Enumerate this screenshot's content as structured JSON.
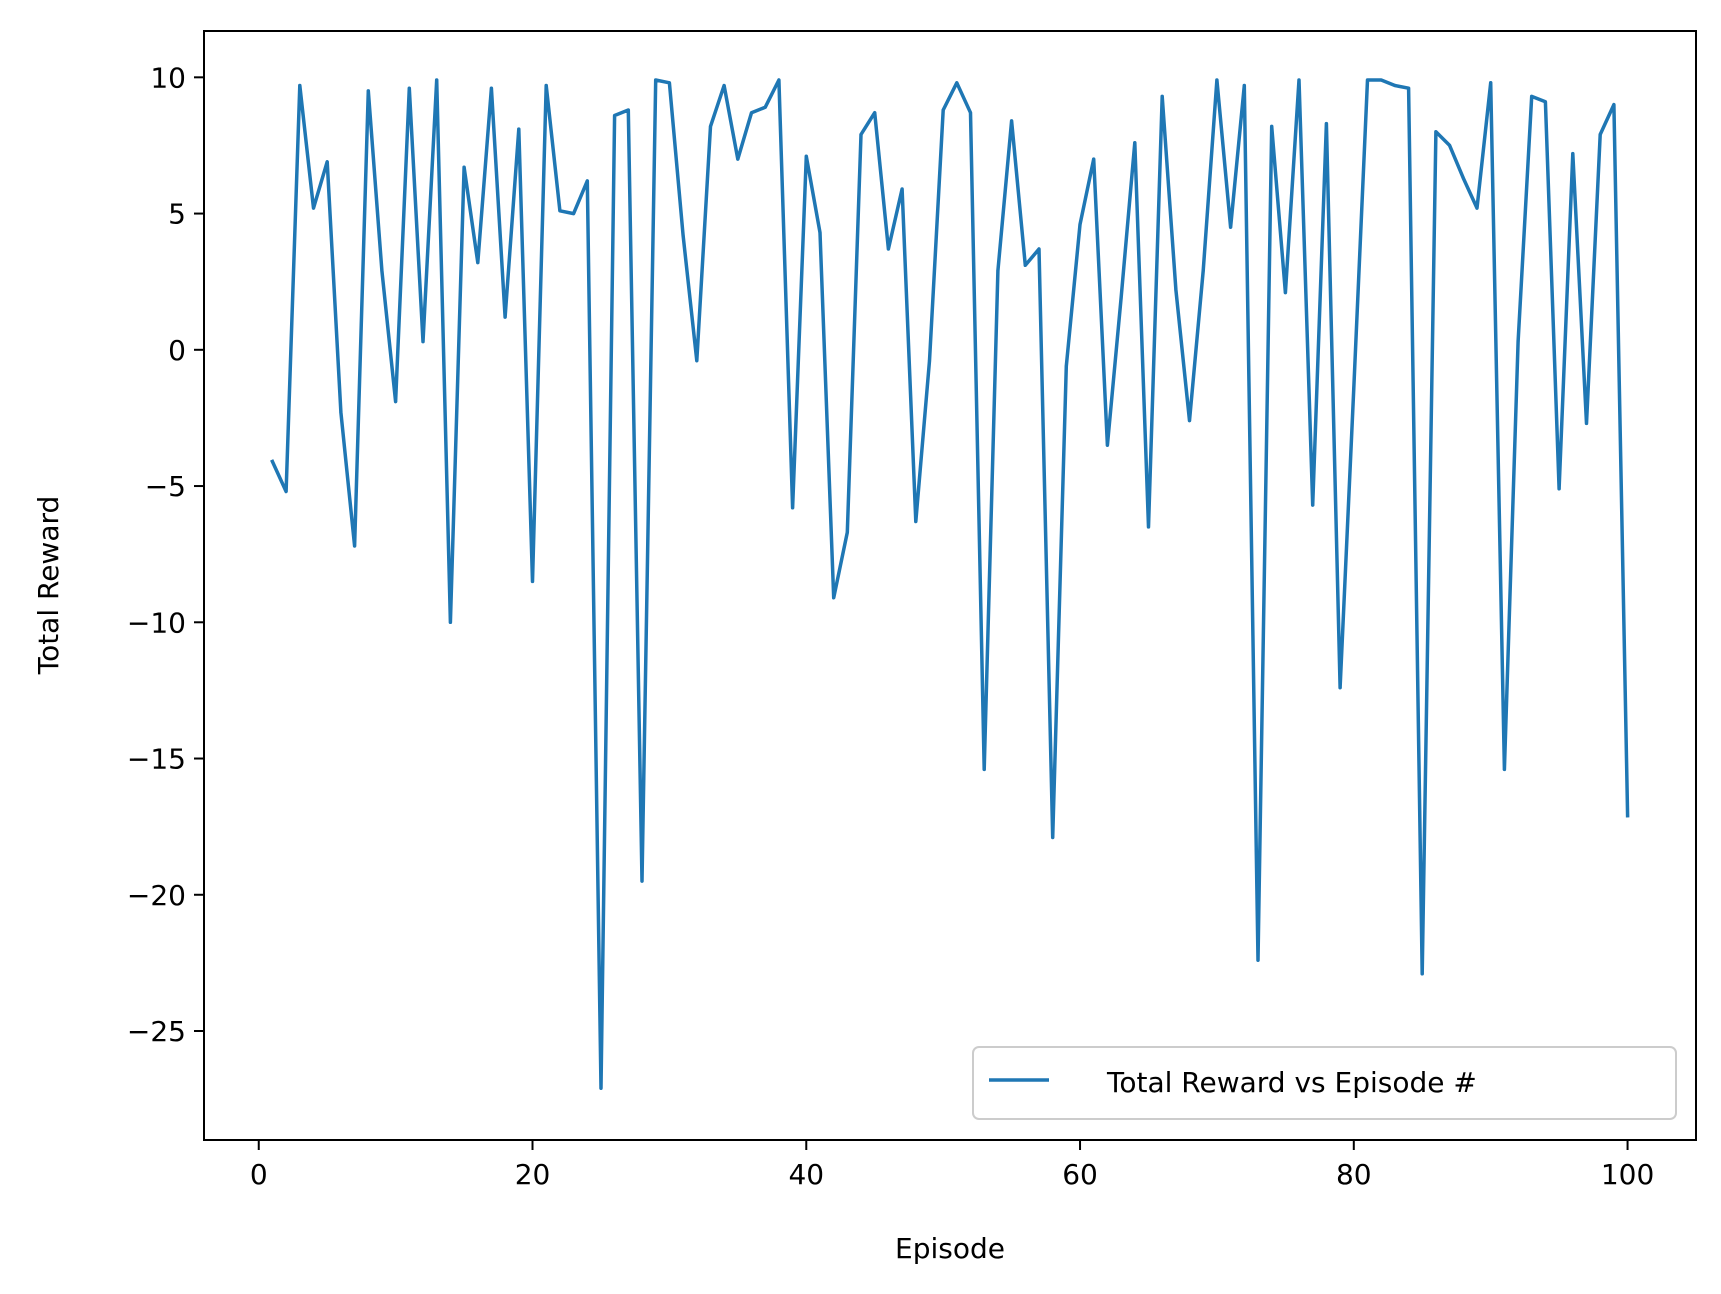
{
  "chart_data": {
    "type": "line",
    "title": "",
    "xlabel": "Episode",
    "ylabel": "Total Reward",
    "xlim": [
      -4,
      105
    ],
    "ylim": [
      -29,
      11.7
    ],
    "x_ticks": [
      0,
      20,
      40,
      60,
      80,
      100
    ],
    "y_ticks": [
      10,
      5,
      0,
      -5,
      -10,
      -15,
      -20,
      -25
    ],
    "x_tick_labels": [
      "0",
      "20",
      "40",
      "60",
      "80",
      "100"
    ],
    "y_tick_labels": [
      "10",
      "5",
      "0",
      "−5",
      "−10",
      "−15",
      "−20",
      "−25"
    ],
    "grid": false,
    "legend_position": "lower-right",
    "series": [
      {
        "name": "Total Reward vs Episode #",
        "color": "#1f77b4",
        "x": [
          1,
          2,
          3,
          4,
          5,
          6,
          7,
          8,
          9,
          10,
          11,
          12,
          13,
          14,
          15,
          16,
          17,
          18,
          19,
          20,
          21,
          22,
          23,
          24,
          25,
          26,
          27,
          28,
          29,
          30,
          31,
          32,
          33,
          34,
          35,
          36,
          37,
          38,
          39,
          40,
          41,
          42,
          43,
          44,
          45,
          46,
          47,
          48,
          49,
          50,
          51,
          52,
          53,
          54,
          55,
          56,
          57,
          58,
          59,
          60,
          61,
          62,
          63,
          64,
          65,
          66,
          67,
          68,
          69,
          70,
          71,
          72,
          73,
          74,
          75,
          76,
          77,
          78,
          79,
          80,
          81,
          82,
          83,
          84,
          85,
          86,
          87,
          88,
          89,
          90,
          91,
          92,
          93,
          94,
          95,
          96,
          97,
          98,
          99,
          100
        ],
        "values": [
          -4.1,
          -5.2,
          9.7,
          5.2,
          6.9,
          -2.3,
          -7.2,
          9.5,
          2.9,
          -1.9,
          9.6,
          0.3,
          9.9,
          -10.0,
          6.7,
          3.2,
          9.6,
          1.2,
          8.1,
          -8.5,
          9.7,
          5.1,
          5.0,
          6.2,
          -27.1,
          8.6,
          8.8,
          -19.5,
          9.9,
          9.8,
          4.2,
          -0.4,
          8.2,
          9.7,
          7.0,
          8.7,
          8.9,
          9.9,
          -5.8,
          7.1,
          4.3,
          -9.1,
          -6.7,
          7.9,
          8.7,
          3.7,
          5.9,
          -6.3,
          -0.4,
          8.8,
          9.8,
          8.7,
          -15.4,
          2.9,
          8.4,
          3.1,
          3.7,
          -17.9,
          -0.6,
          4.6,
          7.0,
          -3.5,
          1.9,
          7.6,
          -6.5,
          9.3,
          2.2,
          -2.6,
          2.9,
          9.9,
          4.5,
          9.7,
          -22.4,
          8.2,
          2.1,
          9.9,
          -5.7,
          8.3,
          -12.4,
          -1.4,
          9.9,
          9.9,
          9.7,
          9.6,
          -22.9,
          8.0,
          7.5,
          6.3,
          5.2,
          9.8,
          -15.4,
          0.3,
          9.3,
          9.1,
          -5.1,
          7.2,
          -2.7,
          7.9,
          9.0,
          -17.1
        ]
      }
    ]
  }
}
